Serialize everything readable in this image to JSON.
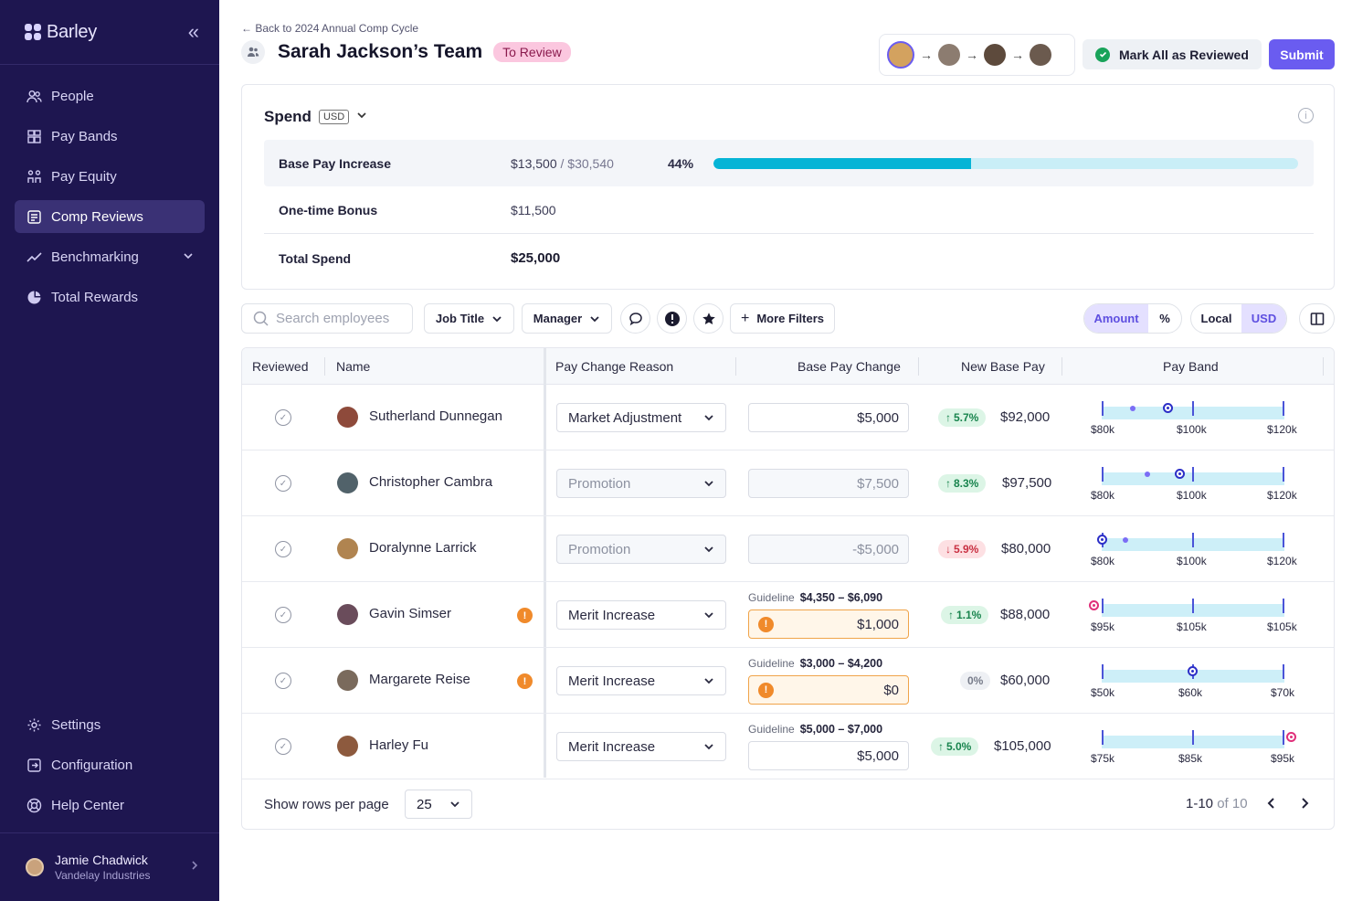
{
  "sidebar": {
    "brand": "Barley",
    "nav": [
      {
        "label": "People",
        "icon": "people-icon"
      },
      {
        "label": "Pay Bands",
        "icon": "pay-bands-icon"
      },
      {
        "label": "Pay Equity",
        "icon": "pay-equity-icon"
      },
      {
        "label": "Comp Reviews",
        "icon": "comp-reviews-icon",
        "active": true
      },
      {
        "label": "Benchmarking",
        "icon": "benchmarking-icon"
      },
      {
        "label": "Total Rewards",
        "icon": "total-rewards-icon"
      }
    ],
    "bottom_nav": [
      {
        "label": "Settings",
        "icon": "gear-icon"
      },
      {
        "label": "Configuration",
        "icon": "configuration-icon"
      },
      {
        "label": "Help Center",
        "icon": "help-icon"
      }
    ],
    "user": {
      "name": "Jamie Chadwick",
      "company": "Vandelay Industries"
    }
  },
  "header": {
    "back_link": "← Back to 2024 Annual Comp Cycle",
    "title": "Sarah Jackson’s Team",
    "status": "To Review",
    "mark_all": "Mark All as Reviewed",
    "submit": "Submit"
  },
  "spend": {
    "title": "Spend",
    "currency": "USD",
    "rows": [
      {
        "label": "Base Pay Increase",
        "value": "$13,500",
        "of": " / $30,540",
        "percent": "44%",
        "fraction": 0.44
      },
      {
        "label": "One-time Bonus",
        "value": "$11,500"
      },
      {
        "label": "Total Spend",
        "value": "$25,000"
      }
    ]
  },
  "filters": {
    "search_placeholder": "Search employees",
    "job_title": "Job Title",
    "manager": "Manager",
    "more_filters": "More Filters",
    "amount": "Amount",
    "percent": "%",
    "local": "Local",
    "usd": "USD"
  },
  "table": {
    "columns": {
      "reviewed": "Reviewed",
      "name": "Name",
      "reason": "Pay Change Reason",
      "base_change": "Base Pay Change",
      "new_base": "New Base Pay",
      "band": "Pay Band"
    },
    "guideline_label": "Guideline",
    "rows": [
      {
        "name": "Sutherland Dunnegan",
        "reason": "Market Adjustment",
        "change": "$5,000",
        "pct": "5.7%",
        "dir": "up",
        "new_pay": "$92,000",
        "band": [
          "$80k",
          "$100k",
          "$120k"
        ]
      },
      {
        "name": "Christopher Cambra",
        "reason": "Promotion",
        "change": "$7,500",
        "pct": "8.3%",
        "dir": "up",
        "new_pay": "$97,500",
        "band": [
          "$80k",
          "$100k",
          "$120k"
        ]
      },
      {
        "name": "Doralynne Larrick",
        "reason": "Promotion",
        "change": "-$5,000",
        "pct": "5.9%",
        "dir": "down",
        "new_pay": "$80,000",
        "band": [
          "$80k",
          "$100k",
          "$120k"
        ]
      },
      {
        "name": "Gavin Simser",
        "reason": "Merit Increase",
        "guideline": "$4,350 – $6,090",
        "change": "$1,000",
        "pct": "1.1%",
        "dir": "up",
        "new_pay": "$88,000",
        "band": [
          "$95k",
          "$105k",
          "$105k"
        ]
      },
      {
        "name": "Margarete Reise",
        "reason": "Merit Increase",
        "guideline": "$3,000 – $4,200",
        "change": "$0",
        "pct": "0%",
        "dir": "flat",
        "new_pay": "$60,000",
        "band": [
          "$50k",
          "$60k",
          "$70k"
        ]
      },
      {
        "name": "Harley Fu",
        "reason": "Merit Increase",
        "guideline": "$5,000 – $7,000",
        "change": "$5,000",
        "pct": "5.0%",
        "dir": "up",
        "new_pay": "$105,000",
        "band": [
          "$75k",
          "$85k",
          "$95k"
        ]
      }
    ]
  },
  "footer": {
    "rows_label": "Show rows per page",
    "rows_value": "25",
    "range": "1-10",
    "of_total": " of 10"
  },
  "colors": {
    "accent": "#6a5cf0",
    "sidebar": "#1e1650",
    "bar": "#06b4d6"
  }
}
